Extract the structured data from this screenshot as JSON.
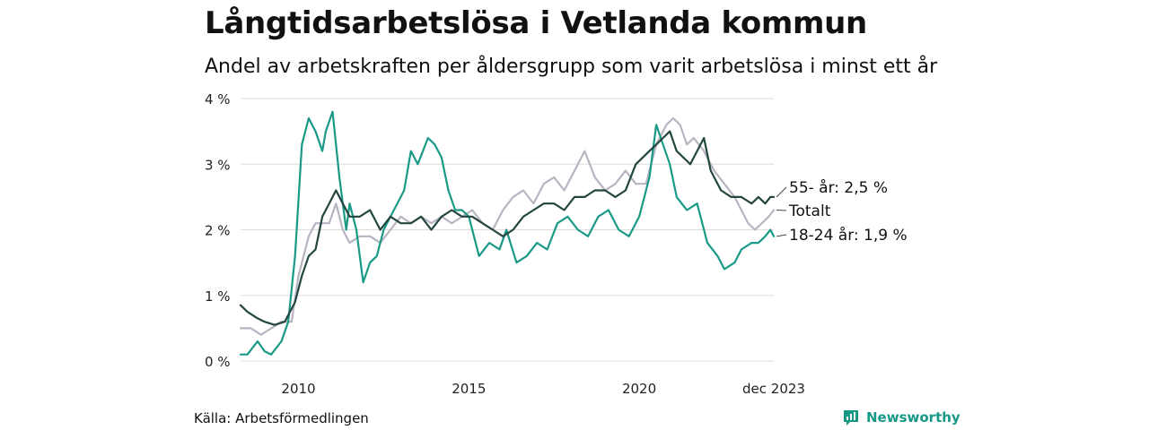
{
  "title": "Långtidsarbetslösa i Vetlanda kommun",
  "subtitle": "Andel av arbetskraften per åldersgrupp som varit arbetslösa i minst ett år",
  "source": "Källa: Arbetsförmedlingen",
  "brand": "Newsworthy",
  "colors": {
    "brand": "#159885",
    "series_55": "#23463f",
    "series_totalt": "#b7b5c2",
    "series_18_24": "#1a9a86",
    "grid": "#dddddd"
  },
  "chart_data": {
    "type": "line",
    "ylim": [
      0,
      4
    ],
    "yticks": [
      {
        "value": 0,
        "label": "0 %"
      },
      {
        "value": 1,
        "label": "1 %"
      },
      {
        "value": 2,
        "label": "2 %"
      },
      {
        "value": 3,
        "label": "3 %"
      },
      {
        "value": 4,
        "label": "4 %"
      }
    ],
    "xlim": [
      2008.3,
      2023.95
    ],
    "xticks": [
      {
        "value": 2010.0,
        "label": "2010"
      },
      {
        "value": 2015.0,
        "label": "2015"
      },
      {
        "value": 2020.0,
        "label": "2020"
      },
      {
        "value": 2023.95,
        "label": "dec 2023"
      }
    ],
    "series": [
      {
        "name": "Totalt",
        "color": "#b7b5c2",
        "end_label": "Totalt",
        "x": [
          2008.3,
          2008.6,
          2008.9,
          2009.2,
          2009.5,
          2009.8,
          2010.0,
          2010.3,
          2010.5,
          2010.7,
          2010.9,
          2011.1,
          2011.3,
          2011.5,
          2011.8,
          2012.1,
          2012.4,
          2012.7,
          2013.0,
          2013.3,
          2013.6,
          2013.9,
          2014.2,
          2014.5,
          2014.8,
          2015.1,
          2015.4,
          2015.7,
          2016.0,
          2016.3,
          2016.6,
          2016.9,
          2017.2,
          2017.5,
          2017.8,
          2018.1,
          2018.4,
          2018.7,
          2019.0,
          2019.3,
          2019.6,
          2019.9,
          2020.2,
          2020.5,
          2020.8,
          2021.0,
          2021.2,
          2021.4,
          2021.6,
          2021.9,
          2022.2,
          2022.5,
          2022.8,
          2023.0,
          2023.2,
          2023.4,
          2023.6,
          2023.8,
          2023.95
        ],
        "values": [
          0.5,
          0.5,
          0.4,
          0.5,
          0.6,
          0.6,
          1.3,
          1.9,
          2.1,
          2.1,
          2.1,
          2.4,
          2.0,
          1.8,
          1.9,
          1.9,
          1.8,
          2.0,
          2.2,
          2.1,
          2.2,
          2.1,
          2.2,
          2.1,
          2.2,
          2.3,
          2.1,
          2.0,
          2.3,
          2.5,
          2.6,
          2.4,
          2.7,
          2.8,
          2.6,
          2.9,
          3.2,
          2.8,
          2.6,
          2.7,
          2.9,
          2.7,
          2.7,
          3.3,
          3.6,
          3.7,
          3.6,
          3.3,
          3.4,
          3.2,
          2.9,
          2.7,
          2.5,
          2.3,
          2.1,
          2.0,
          2.1,
          2.2,
          2.3
        ]
      },
      {
        "name": "18-24 år",
        "color": "#1a9a86",
        "end_label": "18-24 år: 1,9 %",
        "x": [
          2008.3,
          2008.5,
          2008.8,
          2009.0,
          2009.2,
          2009.5,
          2009.7,
          2009.9,
          2010.1,
          2010.3,
          2010.5,
          2010.7,
          2010.8,
          2011.0,
          2011.2,
          2011.4,
          2011.5,
          2011.7,
          2011.9,
          2012.1,
          2012.3,
          2012.5,
          2012.7,
          2012.9,
          2013.1,
          2013.3,
          2013.5,
          2013.8,
          2014.0,
          2014.2,
          2014.4,
          2014.6,
          2014.8,
          2015.0,
          2015.3,
          2015.6,
          2015.9,
          2016.1,
          2016.4,
          2016.7,
          2017.0,
          2017.3,
          2017.6,
          2017.9,
          2018.2,
          2018.5,
          2018.8,
          2019.1,
          2019.4,
          2019.7,
          2020.0,
          2020.3,
          2020.5,
          2020.7,
          2020.9,
          2021.1,
          2021.4,
          2021.7,
          2022.0,
          2022.3,
          2022.5,
          2022.8,
          2023.0,
          2023.3,
          2023.5,
          2023.7,
          2023.85,
          2023.95
        ],
        "values": [
          0.1,
          0.1,
          0.3,
          0.15,
          0.1,
          0.3,
          0.6,
          1.6,
          3.3,
          3.7,
          3.5,
          3.2,
          3.5,
          3.8,
          2.8,
          2.0,
          2.4,
          2.0,
          1.2,
          1.5,
          1.6,
          2.0,
          2.2,
          2.4,
          2.6,
          3.2,
          3.0,
          3.4,
          3.3,
          3.1,
          2.6,
          2.3,
          2.3,
          2.2,
          1.6,
          1.8,
          1.7,
          2.0,
          1.5,
          1.6,
          1.8,
          1.7,
          2.1,
          2.2,
          2.0,
          1.9,
          2.2,
          2.3,
          2.0,
          1.9,
          2.2,
          2.8,
          3.6,
          3.3,
          3.0,
          2.5,
          2.3,
          2.4,
          1.8,
          1.6,
          1.4,
          1.5,
          1.7,
          1.8,
          1.8,
          1.9,
          2.0,
          1.9
        ]
      },
      {
        "name": "55- år",
        "color": "#23463f",
        "end_label": "55- år: 2,5 %",
        "x": [
          2008.3,
          2008.5,
          2008.8,
          2009.0,
          2009.3,
          2009.6,
          2009.9,
          2010.1,
          2010.3,
          2010.5,
          2010.7,
          2010.9,
          2011.1,
          2011.3,
          2011.5,
          2011.8,
          2012.1,
          2012.4,
          2012.7,
          2013.0,
          2013.3,
          2013.6,
          2013.9,
          2014.2,
          2014.5,
          2014.8,
          2015.1,
          2015.4,
          2015.7,
          2016.0,
          2016.3,
          2016.6,
          2016.9,
          2017.2,
          2017.5,
          2017.8,
          2018.1,
          2018.4,
          2018.7,
          2019.0,
          2019.3,
          2019.6,
          2019.9,
          2020.1,
          2020.3,
          2020.5,
          2020.7,
          2020.9,
          2021.1,
          2021.3,
          2021.5,
          2021.7,
          2021.9,
          2022.1,
          2022.4,
          2022.7,
          2023.0,
          2023.3,
          2023.5,
          2023.7,
          2023.85,
          2023.95
        ],
        "values": [
          0.85,
          0.75,
          0.65,
          0.6,
          0.55,
          0.6,
          0.9,
          1.3,
          1.6,
          1.7,
          2.2,
          2.4,
          2.6,
          2.4,
          2.2,
          2.2,
          2.3,
          2.0,
          2.2,
          2.1,
          2.1,
          2.2,
          2.0,
          2.2,
          2.3,
          2.2,
          2.2,
          2.1,
          2.0,
          1.9,
          2.0,
          2.2,
          2.3,
          2.4,
          2.4,
          2.3,
          2.5,
          2.5,
          2.6,
          2.6,
          2.5,
          2.6,
          3.0,
          3.1,
          3.2,
          3.3,
          3.4,
          3.5,
          3.2,
          3.1,
          3.0,
          3.2,
          3.4,
          2.9,
          2.6,
          2.5,
          2.5,
          2.4,
          2.5,
          2.4,
          2.5,
          2.5
        ]
      }
    ]
  }
}
